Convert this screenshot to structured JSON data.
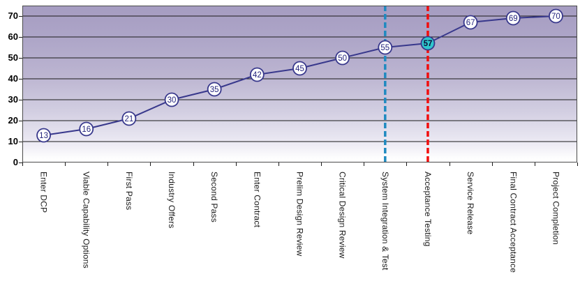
{
  "chart_data": {
    "type": "line",
    "title": "",
    "xlabel": "",
    "ylabel": "",
    "categories": [
      "Enter DCP",
      "Viable Capability Options",
      "First Pass",
      "Industry Offers",
      "Second Pass",
      "Enter Contract",
      "Prelim Design Review",
      "Critical Design Review",
      "System Integration & Test",
      "Acceptance Testing",
      "Service Release",
      "Final Contract Acceptance",
      "Project Completion"
    ],
    "values": [
      13,
      16,
      21,
      30,
      35,
      42,
      45,
      50,
      55,
      57,
      67,
      69,
      70
    ],
    "ylim": [
      0,
      75
    ],
    "yticks": [
      0,
      10,
      20,
      30,
      40,
      50,
      60,
      70
    ],
    "grid": "horizontal",
    "legend": "none",
    "x_labels_rotated": "vertical-top-to-bottom",
    "colors": {
      "line": "#38388c",
      "marker_fill": "#ffffff",
      "marker_label": "#24247d",
      "highlight_fill": "#2fc7cd",
      "highlight_label": "#0c0c3a",
      "grid_line": "#1a1a1a",
      "plot_border": "#4a4a4a",
      "ref_blue": "#1f8ac0",
      "ref_red": "#f20d0d"
    },
    "highlight_index": 9,
    "reference_lines": [
      {
        "name": "blue-dashed-reference-line",
        "at_category": "System Integration & Test",
        "category_index": 8,
        "color_key": "ref_blue"
      },
      {
        "name": "red-dashed-reference-line",
        "at_category": "Acceptance Testing",
        "category_index": 9,
        "color_key": "ref_red"
      }
    ]
  }
}
